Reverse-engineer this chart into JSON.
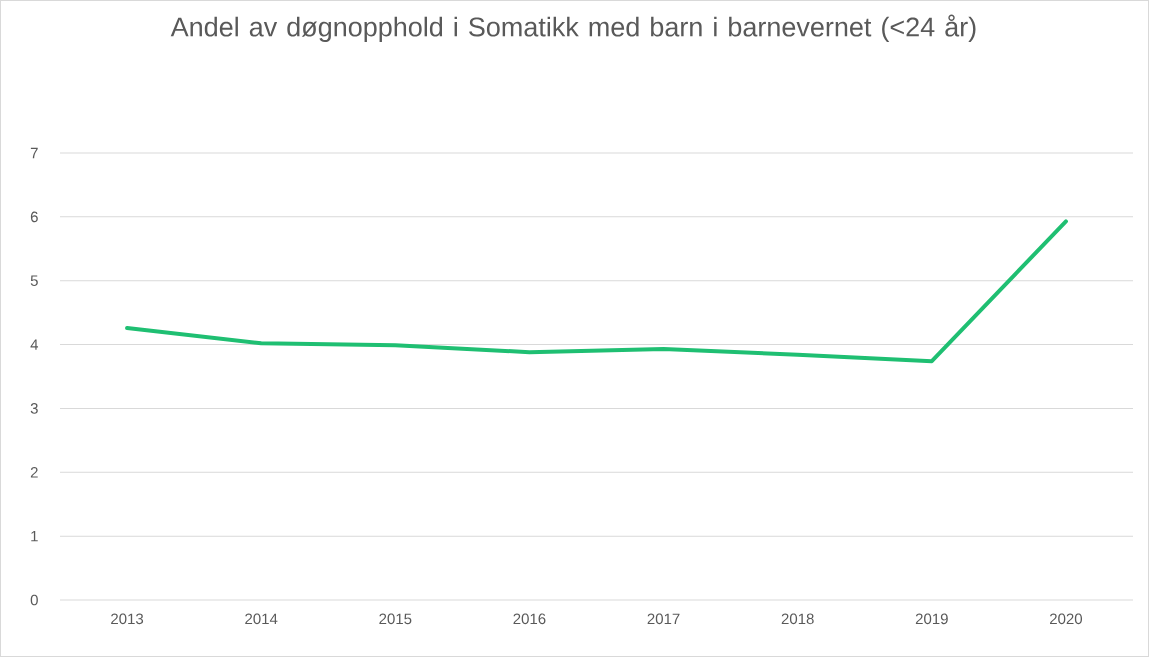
{
  "chart_data": {
    "type": "line",
    "title": "Andel av døgnopphold i Somatikk med barn i barnevernet (<24 år)",
    "categories": [
      "2013",
      "2014",
      "2015",
      "2016",
      "2017",
      "2018",
      "2019",
      "2020"
    ],
    "values": [
      4.26,
      4.02,
      3.99,
      3.88,
      3.93,
      3.84,
      3.74,
      5.93
    ],
    "color": "#1fbf72",
    "ylim": [
      0,
      7
    ],
    "yticks": [
      0,
      1,
      2,
      3,
      4,
      5,
      6,
      7
    ],
    "grid": "y"
  }
}
